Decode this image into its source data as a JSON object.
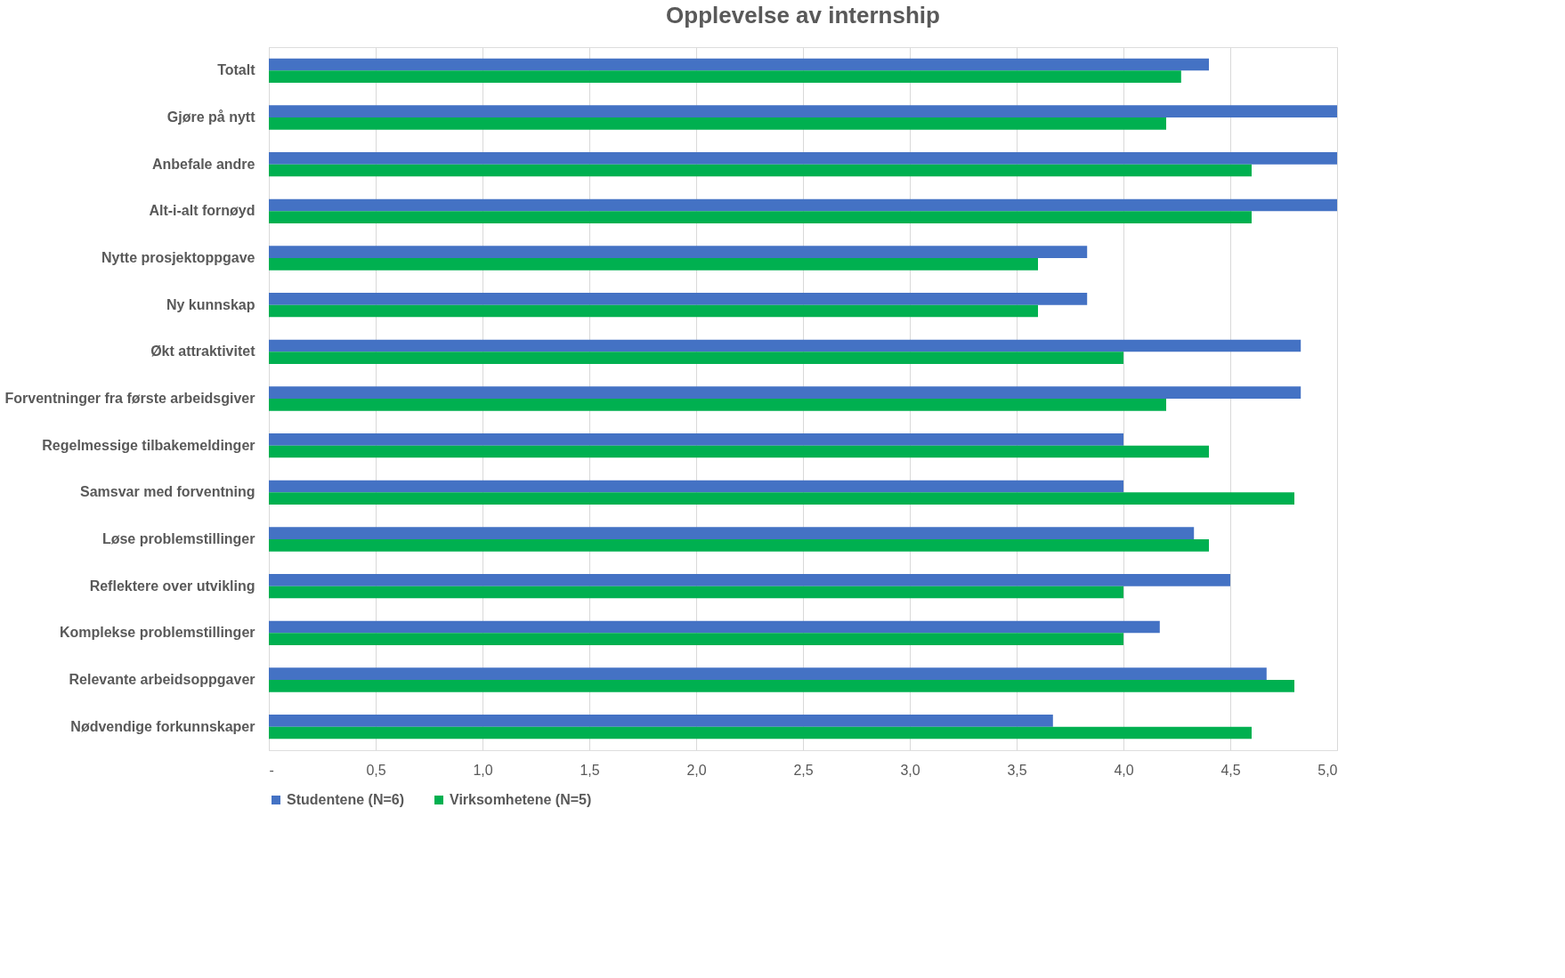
{
  "chart_data": {
    "type": "bar",
    "orientation": "horizontal",
    "title": "Opplevelse av internship",
    "categories": [
      "Totalt",
      "Gjøre på nytt",
      "Anbefale andre",
      "Alt-i-alt fornøyd",
      "Nytte prosjektoppgave",
      "Ny kunnskap",
      "Økt attraktivitet",
      "Forventninger fra første arbeidsgiver",
      "Regelmessige tilbakemeldinger",
      "Samsvar med forventning",
      "Løse problemstillinger",
      "Reflektere over utvikling",
      "Komplekse problemstillinger",
      "Relevante arbeidsoppgaver",
      "Nødvendige forkunnskaper"
    ],
    "series": [
      {
        "name": "Studentene (N=6)",
        "color": "#4472c4",
        "values": [
          4.4,
          5.0,
          5.0,
          5.0,
          3.83,
          3.83,
          4.83,
          4.83,
          4.0,
          4.0,
          4.33,
          4.5,
          4.17,
          4.67,
          3.67
        ]
      },
      {
        "name": "Virksomhetene (N=5)",
        "color": "#00b050",
        "values": [
          4.27,
          4.2,
          4.6,
          4.6,
          3.6,
          3.6,
          4.0,
          4.2,
          4.4,
          4.8,
          4.4,
          4.0,
          4.0,
          4.8,
          4.6
        ]
      }
    ],
    "xlim": [
      0,
      5
    ],
    "xticks": [
      {
        "value": 0,
        "label": "-"
      },
      {
        "value": 0.5,
        "label": "0,5"
      },
      {
        "value": 1.0,
        "label": "1,0"
      },
      {
        "value": 1.5,
        "label": "1,5"
      },
      {
        "value": 2.0,
        "label": "2,0"
      },
      {
        "value": 2.5,
        "label": "2,5"
      },
      {
        "value": 3.0,
        "label": "3,0"
      },
      {
        "value": 3.5,
        "label": "3,5"
      },
      {
        "value": 4.0,
        "label": "4,0"
      },
      {
        "value": 4.5,
        "label": "4,5"
      },
      {
        "value": 5.0,
        "label": "5,0"
      }
    ],
    "grid": "x",
    "legend": "bottom"
  }
}
